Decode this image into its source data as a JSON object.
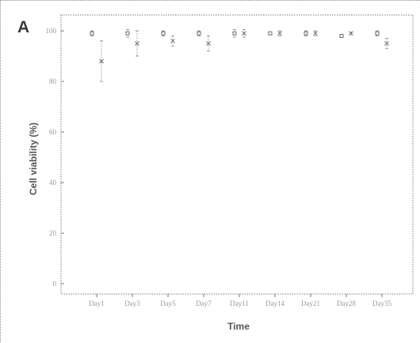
{
  "figure": {
    "panel_label": "A"
  },
  "chart_data": {
    "type": "scatter",
    "title": "",
    "xlabel": "Time",
    "ylabel": "Cell viability (%)",
    "ylim": [
      0,
      100
    ],
    "yticks": [
      0,
      20,
      40,
      60,
      80,
      100
    ],
    "ytick_labels": [
      "0",
      "20",
      "40",
      "60",
      "80",
      "100"
    ],
    "grid": false,
    "categories": [
      "Day1",
      "Day3",
      "Day5",
      "Day7",
      "Day11",
      "Day14",
      "Day21",
      "Day28",
      "Day35"
    ],
    "series": [
      {
        "values": [
          99,
          99,
          99,
          99,
          99,
          99,
          99,
          98,
          99
        ],
        "error": [
          1,
          1.5,
          1,
          1,
          1.5,
          0.5,
          1,
          0.5,
          1
        ]
      },
      {
        "values": [
          88,
          95,
          96,
          95,
          99,
          99,
          99,
          99,
          95
        ],
        "error": [
          8,
          5,
          2,
          3,
          1.5,
          1,
          1,
          0.5,
          2
        ]
      }
    ]
  },
  "colors": {
    "ink": "#9a9a9a",
    "frame": "#7a7a7a",
    "title": "#555555"
  }
}
